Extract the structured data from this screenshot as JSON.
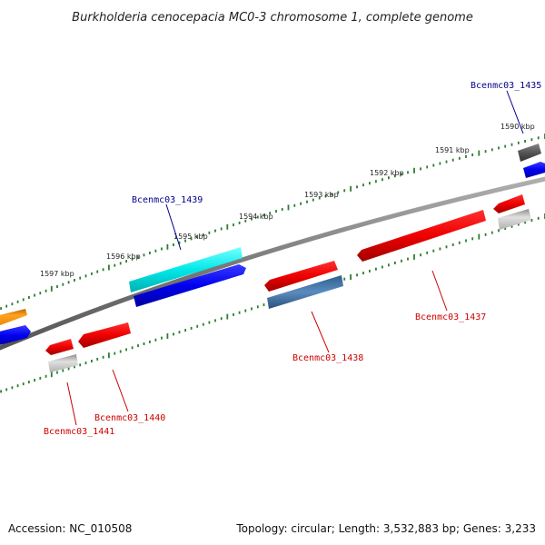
{
  "title": "Burkholderia cenocepacia MC0-3 chromosome 1, complete genome",
  "footer": {
    "accession": "Accession: NC_010508",
    "summary": "Topology: circular; Length: 3,532,883 bp; Genes: 3,233"
  },
  "colors": {
    "backbone": "#808080",
    "tick": "#2e7d32",
    "label_forward": "#00008b",
    "label_reverse": "#cc0000"
  },
  "ticks": [
    {
      "label": "1590 kbp"
    },
    {
      "label": "1591 kbp"
    },
    {
      "label": "1592 kbp"
    },
    {
      "label": "1593 kbp"
    },
    {
      "label": "1594 kbp"
    },
    {
      "label": "1595 kbp"
    },
    {
      "label": "1596 kbp"
    },
    {
      "label": "1597 kbp"
    }
  ],
  "genes": [
    {
      "name": "Bcenmc03_1435",
      "color": "#00008b"
    },
    {
      "name": "Bcenmc03_1437",
      "color": "#cc0000"
    },
    {
      "name": "Bcenmc03_1438",
      "color": "#cc0000"
    },
    {
      "name": "Bcenmc03_1439",
      "color": "#00008b"
    },
    {
      "name": "Bcenmc03_1440",
      "color": "#cc0000"
    },
    {
      "name": "Bcenmc03_1441",
      "color": "#cc0000"
    }
  ]
}
